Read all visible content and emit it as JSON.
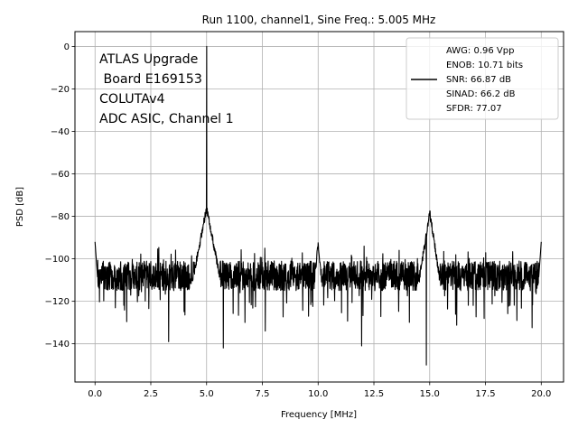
{
  "chart_data": {
    "type": "line",
    "title": "Run 1100, channel1, Sine Freq.: 5.005 MHz",
    "xlabel": "Frequency [MHz]",
    "ylabel": "PSD [dB]",
    "xlim": [
      -0.9,
      21.0
    ],
    "ylim": [
      -158,
      7
    ],
    "xticks": [
      0.0,
      2.5,
      5.0,
      7.5,
      10.0,
      12.5,
      15.0,
      17.5,
      20.0
    ],
    "xtick_labels": [
      "0.0",
      "2.5",
      "5.0",
      "7.5",
      "10.0",
      "12.5",
      "15.0",
      "17.5",
      "20.0"
    ],
    "yticks": [
      0,
      -20,
      -40,
      -60,
      -80,
      -100,
      -120,
      -140
    ],
    "ytick_labels": [
      "0",
      "−20",
      "−40",
      "−60",
      "−80",
      "−100",
      "−120",
      "−140"
    ],
    "grid": true,
    "legend_position": "top-right",
    "annotation_lines": [
      "ATLAS Upgrade",
      " Board E169153",
      "COLUTAv4",
      "ADC ASIC, Channel 1"
    ],
    "legend_lines": [
      "AWG: 0.96 Vpp",
      "ENOB: 10.71 bits",
      "SNR: 66.87 dB",
      "SINAD: 66.2 dB",
      "SFDR: 77.07"
    ],
    "line_color": "#000000",
    "series": [
      {
        "noise_floor_db": -108,
        "features": [
          {
            "x": 0.0,
            "y": -92
          },
          {
            "x": 5.005,
            "y": 0
          },
          {
            "x": 5.0,
            "y": -78
          },
          {
            "x": 15.0,
            "y": -79
          },
          {
            "x": 10.0,
            "y": -92
          },
          {
            "x": 20.0,
            "y": -92
          },
          {
            "x": 5.75,
            "y": -142
          },
          {
            "x": 14.85,
            "y": -150
          },
          {
            "x": 11.95,
            "y": -141
          },
          {
            "x": 3.3,
            "y": -139
          }
        ]
      }
    ]
  }
}
